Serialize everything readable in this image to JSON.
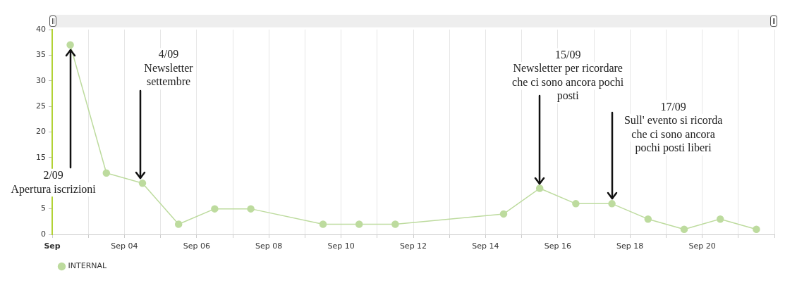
{
  "chart_data": {
    "type": "line",
    "x": [
      "--09-02T12:00",
      "--09-03T12:00",
      "--09-04T12:00",
      "--09-05T12:00",
      "--09-06T12:00",
      "--09-07T12:00",
      "--09-09T12:00",
      "--09-10T12:00",
      "--09-11T12:00",
      "--09-14T12:00",
      "--09-15T12:00",
      "--09-16T12:00",
      "--09-17T12:00",
      "--09-18T12:00",
      "--09-19T12:00",
      "--09-20T12:00",
      "--09-21T12:00"
    ],
    "series": [
      {
        "name": "INTERNAL",
        "color": "#bddb9e",
        "values": [
          37,
          12,
          10,
          2,
          5,
          5,
          2,
          2,
          2,
          4,
          9,
          6,
          6,
          3,
          1,
          3,
          1
        ]
      }
    ],
    "xlim": [
      "--09-02",
      "--09-22"
    ],
    "xticks": [
      {
        "value": "--09-02",
        "label": "Sep"
      },
      {
        "value": "--09-03",
        "label": null
      },
      {
        "value": "--09-04",
        "label": "Sep 04"
      },
      {
        "value": "--09-05",
        "label": null
      },
      {
        "value": "--09-06",
        "label": "Sep 06"
      },
      {
        "value": "--09-07",
        "label": null
      },
      {
        "value": "--09-08",
        "label": "Sep 08"
      },
      {
        "value": "--09-09",
        "label": null
      },
      {
        "value": "--09-10",
        "label": "Sep 10"
      },
      {
        "value": "--09-11",
        "label": null
      },
      {
        "value": "--09-12",
        "label": "Sep 12"
      },
      {
        "value": "--09-13",
        "label": null
      },
      {
        "value": "--09-14",
        "label": "Sep 14"
      },
      {
        "value": "--09-15",
        "label": null
      },
      {
        "value": "--09-16",
        "label": "Sep 16"
      },
      {
        "value": "--09-17",
        "label": null
      },
      {
        "value": "--09-18",
        "label": "Sep 18"
      },
      {
        "value": "--09-19",
        "label": null
      },
      {
        "value": "--09-20",
        "label": "Sep 20"
      },
      {
        "value": "--09-21",
        "label": null
      },
      {
        "value": "--09-22",
        "label": null
      }
    ],
    "ylim": [
      0,
      40
    ],
    "yticks": [
      0,
      5,
      15,
      20,
      25,
      30,
      35,
      40
    ],
    "grid": "x",
    "legend": "bottom left",
    "marker": "circle",
    "line_style": "solid",
    "annotations": [
      {
        "text": "2/09\nApertura iscrizioni",
        "x": "--09-02T12:00",
        "y": 37
      },
      {
        "text": "4/09\nNewsletter\nsettembre",
        "x": "--09-04T12:00",
        "y": 10
      },
      {
        "text": "15/09\nNewsletter per ricordare\nche ci sono ancora pochi\nposti",
        "x": "--09-15T12:00",
        "y": 9
      },
      {
        "text": "17/09\nSull' evento si ricorda\nche ci sono ancora\npochi posti liberi",
        "x": "--09-17T12:00",
        "y": 6
      }
    ]
  }
}
